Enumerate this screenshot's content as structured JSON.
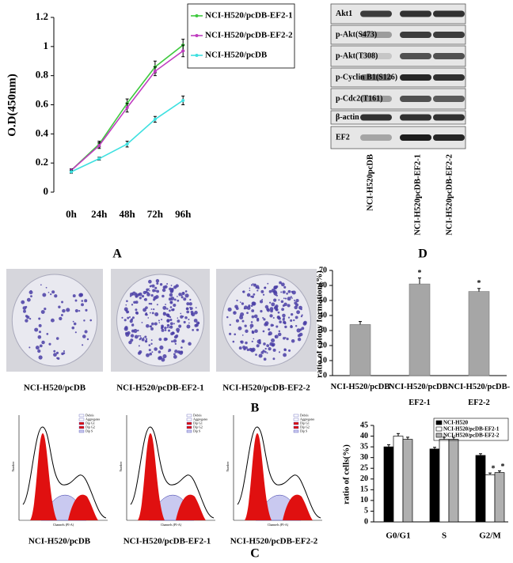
{
  "chart_data": [
    {
      "type": "line",
      "panel": "A",
      "y_label": "O.D(450nm)",
      "categories": [
        "0h",
        "24h",
        "48h",
        "72h",
        "96h"
      ],
      "series": [
        {
          "name": "NCI-H520/pcDB-EF2-1",
          "color": "#3ec93e",
          "values": [
            0.15,
            0.33,
            0.61,
            0.86,
            1.01
          ],
          "errors": [
            0.01,
            0.02,
            0.03,
            0.04,
            0.04
          ]
        },
        {
          "name": "NCI-H520/pcDB-EF2-2",
          "color": "#c03cc0",
          "values": [
            0.15,
            0.32,
            0.58,
            0.83,
            0.97
          ],
          "errors": [
            0.01,
            0.02,
            0.03,
            0.03,
            0.04
          ]
        },
        {
          "name": "NCI-H520/pcDB",
          "color": "#3ee0e0",
          "values": [
            0.14,
            0.23,
            0.33,
            0.5,
            0.63
          ],
          "errors": [
            0.01,
            0.01,
            0.02,
            0.02,
            0.03
          ]
        }
      ],
      "ylim": [
        0,
        1.2
      ],
      "yticks": [
        0,
        0.2,
        0.4,
        0.6,
        0.8,
        1,
        1.2
      ]
    },
    {
      "type": "bar",
      "panel": "B",
      "y_label": "ratio of colony formation(%)",
      "categories": [
        "NCI-H520/pcDB",
        "NCI-H520/pcDB-EF2-1",
        "NCI-H520/pcDB-EF2-2"
      ],
      "values": [
        34,
        61,
        56
      ],
      "errors": [
        2,
        4,
        2
      ],
      "annotations": [
        null,
        "*",
        "*"
      ],
      "color": "#a6a6a6",
      "ylim": [
        0,
        70
      ],
      "yticks": [
        0,
        10,
        20,
        30,
        40,
        50,
        60,
        70
      ]
    },
    {
      "type": "grouped_bar",
      "panel": "C",
      "y_label": "ratio of cells(%)",
      "categories": [
        "G0/G1",
        "S",
        "G2/M"
      ],
      "series": [
        {
          "name": "NCI-H520",
          "color": "#000000",
          "values": [
            35,
            34,
            31
          ],
          "errors": [
            1,
            0.8,
            0.8
          ],
          "annotations": [
            null,
            null,
            null
          ]
        },
        {
          "name": "NCI-H520/pcDB-EF2-1",
          "color": "#ffffff",
          "values": [
            40,
            38.5,
            22
          ],
          "errors": [
            1.2,
            1,
            0.8
          ],
          "annotations": [
            null,
            null,
            "*"
          ]
        },
        {
          "name": "NCI-H520/pcDB-EF2-2",
          "color": "#b0b0b0",
          "values": [
            38.5,
            38.5,
            23
          ],
          "errors": [
            1,
            1,
            0.8
          ],
          "annotations": [
            null,
            null,
            "*"
          ]
        }
      ],
      "ylim": [
        0,
        45
      ],
      "yticks": [
        0,
        5,
        10,
        15,
        20,
        25,
        30,
        35,
        40,
        45
      ]
    }
  ],
  "blot": {
    "panel": "D",
    "rows": [
      "Akt1",
      "p-Akt(S473)",
      "p-Akt(T308)",
      "p-Cyclin B1(S126)",
      "p-Cdc2(T161)",
      "β-actin",
      "EF2"
    ],
    "lanes": [
      "NCI-H520pcDB",
      "NCI-H520pcDB-EF2-1",
      "NCI-H520pcDB-EF2-2"
    ]
  },
  "colony_photos": {
    "captions": [
      "NCI-H520/pcDB",
      "NCI-H520/pcDB-EF2-1",
      "NCI-H520/pcDB-EF2-2"
    ]
  },
  "flow_plots": {
    "captions": [
      "NCI-H520/pcDB",
      "NCI-H520/pcDB-EF2-1",
      "NCI-H520/pcDB-EF2-2"
    ],
    "x_label": "Channels (PI-A)",
    "y_label": "Number",
    "legend": [
      "Debris",
      "Aggregates",
      "Dip G1",
      "Dip G2",
      "Dip S"
    ]
  }
}
